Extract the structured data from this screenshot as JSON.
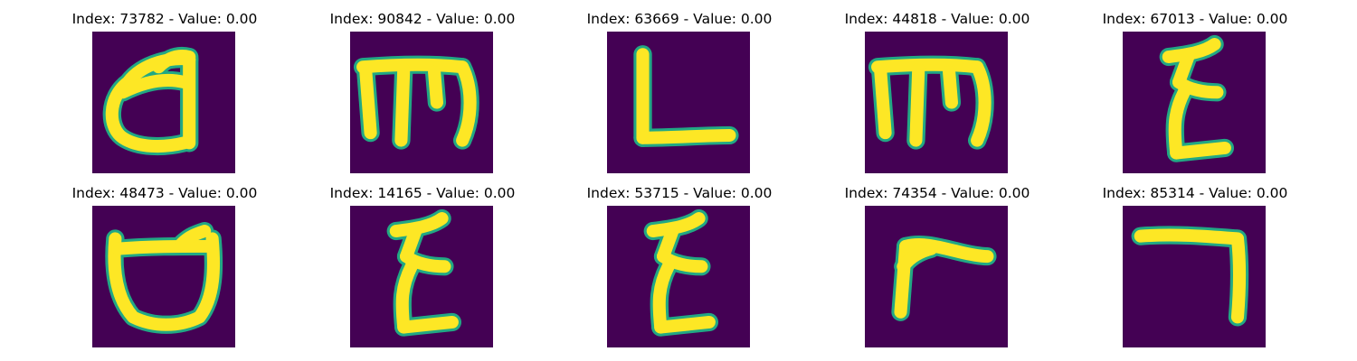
{
  "figure": {
    "panels": [
      {
        "title": "Index: 73782 - Value: 0.00",
        "glyph": "rounded-a-loop"
      },
      {
        "title": "Index: 90842 - Value: 0.00",
        "glyph": "m-three-legs"
      },
      {
        "title": "Index: 63669 - Value: 0.00",
        "glyph": "l-shape"
      },
      {
        "title": "Index: 44818 - Value: 0.00",
        "glyph": "m-three-legs"
      },
      {
        "title": "Index: 67013 - Value: 0.00",
        "glyph": "zigzag-epsilon"
      },
      {
        "title": "Index: 48473 - Value: 0.00",
        "glyph": "cup-with-bar"
      },
      {
        "title": "Index: 14165 - Value: 0.00",
        "glyph": "zigzag-epsilon"
      },
      {
        "title": "Index: 53715 - Value: 0.00",
        "glyph": "zigzag-epsilon"
      },
      {
        "title": "Index: 74354 - Value: 0.00",
        "glyph": "r-shape"
      },
      {
        "title": "Index: 85314 - Value: 0.00",
        "glyph": "reversed-l"
      }
    ],
    "colors": {
      "background": "#440154",
      "stroke_core": "#fde725",
      "stroke_edge": "#22a884"
    }
  }
}
